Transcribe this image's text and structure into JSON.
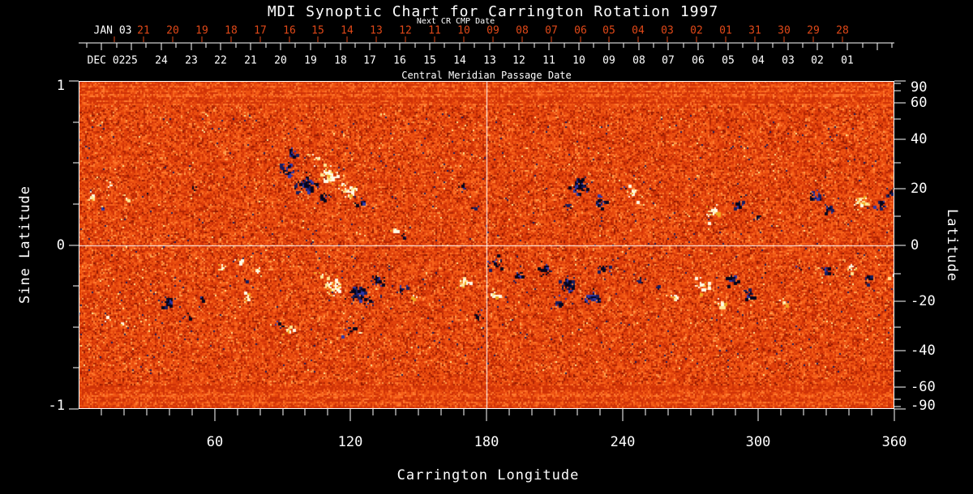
{
  "title": "MDI Synoptic Chart for Carrington Rotation 1997",
  "colors": {
    "background": "#000000",
    "axis": "#ffffff",
    "next_cr_accent": "#e04818"
  },
  "chart_data": {
    "type": "heatmap",
    "title": "MDI Synoptic Chart for Carrington Rotation 1997",
    "subtitle_top": "Next CR CMP Date",
    "subtitle_bottom": "Central Meridian Passage Date",
    "xlabel": "Carrington Longitude",
    "ylabel_left": "Sine Latitude",
    "ylabel_right": "Latitude",
    "x_range": [
      0,
      360
    ],
    "x_major_ticks": [
      60,
      120,
      180,
      240,
      300,
      360
    ],
    "x_minor_step": 10,
    "y_left_range": [
      -1,
      1
    ],
    "y_left_major_ticks": [
      1,
      0,
      -1
    ],
    "y_left_minor_ticks": [
      0.75,
      0.5,
      0.25,
      -0.25,
      -0.5,
      -0.75
    ],
    "y_right_major_ticks": [
      90,
      60,
      40,
      20,
      0,
      -20,
      -40,
      -60,
      -90
    ],
    "y_right_minor_ticks": [
      80,
      70,
      50,
      30,
      10,
      -10,
      -30,
      -50,
      -70,
      -80
    ],
    "grid": false,
    "crosshair": {
      "longitude": 180,
      "sine_latitude": 0
    },
    "top_axis_next_cr": {
      "label": "Next CR CMP Date",
      "month_label": "JAN 03",
      "day_labels": [
        "21",
        "20",
        "19",
        "18",
        "17",
        "16",
        "15",
        "14",
        "13",
        "12",
        "11",
        "10",
        "09",
        "08",
        "07",
        "06",
        "05",
        "04",
        "03",
        "02",
        "01",
        "31",
        "30",
        "29",
        "28"
      ],
      "color": "#e04818"
    },
    "top_axis_cmp": {
      "label": "Central Meridian Passage Date",
      "month_label": "DEC 02",
      "day_labels": [
        "25",
        "24",
        "23",
        "22",
        "21",
        "20",
        "19",
        "18",
        "17",
        "16",
        "15",
        "14",
        "13",
        "12",
        "11",
        "10",
        "09",
        "08",
        "07",
        "06",
        "05",
        "04",
        "03",
        "02",
        "01"
      ],
      "color": "#ffffff"
    },
    "colormap": {
      "base": [
        "#8f1802",
        "#b02403",
        "#cf3207",
        "#e2430c",
        "#ee5312",
        "#f9641c",
        "#ff7a2e",
        "#ffa04d"
      ],
      "positive": [
        "#fffbe8",
        "#ffe792",
        "#f0a81f"
      ],
      "negative": [
        "#04041c",
        "#161c5e",
        "#3038a8"
      ]
    },
    "active_regions_format": [
      "longitude_deg",
      "sine_latitude",
      "radius_px",
      "polarity",
      "strength"
    ],
    "active_regions": [
      [
        6,
        0.3,
        7,
        1,
        0.55
      ],
      [
        14,
        0.36,
        6,
        1,
        0.45
      ],
      [
        11,
        0.22,
        4,
        -1,
        0.5
      ],
      [
        22,
        0.28,
        5,
        1,
        0.4
      ],
      [
        30,
        0.3,
        3,
        -1,
        0.4
      ],
      [
        51,
        0.34,
        4,
        -1,
        0.5
      ],
      [
        92,
        0.46,
        10,
        -1,
        0.8
      ],
      [
        101,
        0.37,
        12,
        -1,
        0.85
      ],
      [
        94,
        0.56,
        6,
        -1,
        0.55
      ],
      [
        105,
        0.52,
        6,
        1,
        0.5
      ],
      [
        111,
        0.43,
        10,
        1,
        0.9
      ],
      [
        119,
        0.33,
        9,
        1,
        0.8
      ],
      [
        108,
        0.28,
        8,
        -1,
        0.7
      ],
      [
        125,
        0.26,
        7,
        -1,
        0.65
      ],
      [
        140,
        0.09,
        5,
        1,
        0.6
      ],
      [
        143,
        0.05,
        4,
        -1,
        0.5
      ],
      [
        169,
        0.35,
        5,
        -1,
        0.55
      ],
      [
        175,
        0.22,
        4,
        -1,
        0.5
      ],
      [
        216,
        0.24,
        6,
        -1,
        0.55
      ],
      [
        221,
        0.36,
        10,
        -1,
        0.75
      ],
      [
        230,
        0.26,
        9,
        -1,
        0.7
      ],
      [
        241,
        0.35,
        4,
        -1,
        0.5
      ],
      [
        245,
        0.31,
        8,
        1,
        0.8
      ],
      [
        280,
        0.2,
        10,
        1,
        0.9
      ],
      [
        292,
        0.24,
        7,
        -1,
        0.65
      ],
      [
        300,
        0.17,
        6,
        -1,
        0.6
      ],
      [
        325,
        0.29,
        9,
        -1,
        0.7
      ],
      [
        331,
        0.21,
        6,
        -1,
        0.6
      ],
      [
        345,
        0.26,
        9,
        1,
        0.85
      ],
      [
        354,
        0.24,
        7,
        -1,
        0.65
      ],
      [
        358,
        0.31,
        5,
        -1,
        0.55
      ],
      [
        39,
        -0.36,
        8,
        -1,
        0.7
      ],
      [
        47,
        -0.43,
        7,
        -1,
        0.6
      ],
      [
        55,
        -0.33,
        6,
        -1,
        0.55
      ],
      [
        63,
        -0.14,
        6,
        1,
        0.65
      ],
      [
        71,
        -0.1,
        5,
        1,
        0.6
      ],
      [
        79,
        -0.16,
        6,
        1,
        0.65
      ],
      [
        74,
        -0.21,
        4,
        -1,
        0.5
      ],
      [
        74,
        -0.32,
        6,
        1,
        0.6
      ],
      [
        12,
        -0.45,
        4,
        1,
        0.4
      ],
      [
        20,
        -0.48,
        3,
        1,
        0.35
      ],
      [
        89,
        -0.48,
        7,
        -1,
        0.6
      ],
      [
        93,
        -0.52,
        6,
        1,
        0.55
      ],
      [
        107,
        -0.18,
        6,
        1,
        0.6
      ],
      [
        113,
        -0.25,
        11,
        1,
        0.95
      ],
      [
        124,
        -0.29,
        12,
        -1,
        0.9
      ],
      [
        132,
        -0.21,
        8,
        -1,
        0.7
      ],
      [
        120,
        -0.52,
        7,
        -1,
        0.6
      ],
      [
        125,
        -0.54,
        5,
        1,
        0.55
      ],
      [
        142,
        -0.27,
        7,
        -1,
        0.6
      ],
      [
        148,
        -0.32,
        4,
        1,
        0.5
      ],
      [
        170,
        -0.23,
        8,
        1,
        0.75
      ],
      [
        184,
        -0.11,
        9,
        -1,
        0.75
      ],
      [
        184,
        -0.31,
        7,
        1,
        0.65
      ],
      [
        177,
        -0.43,
        6,
        -1,
        0.55
      ],
      [
        194,
        -0.19,
        6,
        -1,
        0.6
      ],
      [
        206,
        -0.14,
        9,
        -1,
        0.7
      ],
      [
        216,
        -0.24,
        11,
        -1,
        0.9
      ],
      [
        226,
        -0.32,
        10,
        -1,
        0.8
      ],
      [
        212,
        -0.36,
        7,
        -1,
        0.6
      ],
      [
        232,
        -0.14,
        7,
        -1,
        0.6
      ],
      [
        248,
        -0.21,
        6,
        -1,
        0.55
      ],
      [
        256,
        -0.27,
        5,
        -1,
        0.5
      ],
      [
        262,
        -0.32,
        6,
        1,
        0.6
      ],
      [
        283,
        -0.36,
        7,
        1,
        0.6
      ],
      [
        275,
        -0.25,
        9,
        1,
        0.8
      ],
      [
        288,
        -0.21,
        8,
        -1,
        0.7
      ],
      [
        296,
        -0.3,
        7,
        -1,
        0.6
      ],
      [
        302,
        -0.19,
        5,
        -1,
        0.5
      ],
      [
        311,
        -0.35,
        6,
        1,
        0.55
      ],
      [
        318,
        -0.14,
        5,
        -1,
        0.5
      ],
      [
        331,
        -0.16,
        7,
        -1,
        0.6
      ],
      [
        342,
        -0.14,
        7,
        1,
        0.65
      ],
      [
        348,
        -0.21,
        6,
        -1,
        0.55
      ],
      [
        358,
        -0.19,
        5,
        1,
        0.55
      ]
    ]
  }
}
